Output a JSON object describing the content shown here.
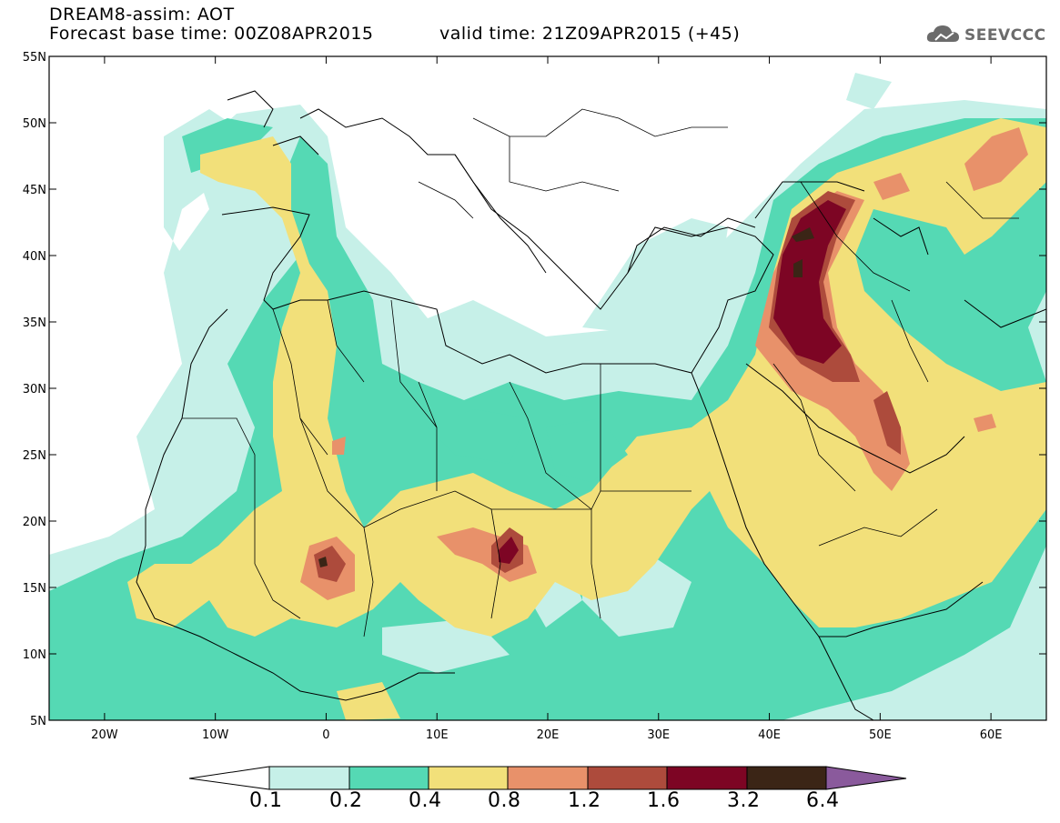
{
  "header": {
    "line1": "DREAM8-assim: AOT",
    "forecast_base": "Forecast base time: 00Z08APR2015",
    "valid_time": "valid time: 21Z09APR2015 (+45)",
    "logo_text": "SEEVCCC"
  },
  "axes": {
    "lat_labels": [
      "55N",
      "50N",
      "45N",
      "40N",
      "35N",
      "30N",
      "25N",
      "20N",
      "15N",
      "10N",
      "5N"
    ],
    "lon_labels": [
      "20W",
      "10W",
      "0",
      "10E",
      "20E",
      "30E",
      "40E",
      "50E",
      "60E"
    ]
  },
  "colorbar": {
    "labels": [
      "0.1",
      "0.2",
      "0.4",
      "0.8",
      "1.2",
      "1.6",
      "3.2",
      "6.4"
    ],
    "colors": [
      "#c6f0e8",
      "#55d9b4",
      "#f2e07a",
      "#e8916a",
      "#ad4b3c",
      "#7d0524",
      "#3b2516",
      "#8a5a9c"
    ]
  },
  "legend_colors": {
    "c01": "#c6f0e8",
    "c02": "#55d9b4",
    "c04": "#f2e07a",
    "c08": "#e8916a",
    "c12": "#ad4b3c",
    "c16": "#7d0524",
    "c32": "#3b2516"
  }
}
